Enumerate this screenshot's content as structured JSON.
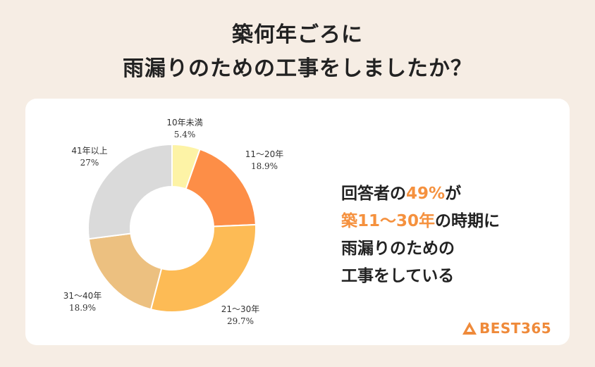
{
  "title": {
    "line1": "築何年ごろに",
    "line2": "雨漏りのための工事をしましたか？"
  },
  "chart_data": {
    "type": "pie",
    "categories": [
      "10年未満",
      "11〜20年",
      "21〜30年",
      "31〜40年",
      "41年以上"
    ],
    "values": [
      5.4,
      18.9,
      29.7,
      18.9,
      27
    ],
    "value_labels": [
      "5.4%",
      "18.9%",
      "29.7%",
      "18.9%",
      "27%"
    ],
    "colors": [
      "#fdf3a6",
      "#fd8e47",
      "#fdbb55",
      "#ecc080",
      "#dadada"
    ],
    "donut": true
  },
  "message": {
    "l1_a": "回答者の",
    "l1_b": "49%",
    "l1_c": "が",
    "l2_a": "築11〜30年",
    "l2_b": "の時期に",
    "l3": "雨漏りのための",
    "l4": "工事をしている"
  },
  "logo": {
    "text": "BEST365",
    "color": "#ef8a3a"
  }
}
